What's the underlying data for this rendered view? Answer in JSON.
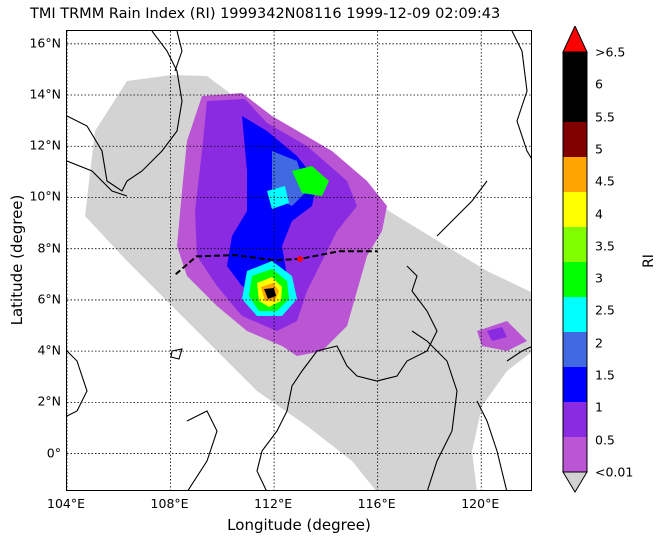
{
  "title": "TMI TRMM Rain Index (RI) 1999342N08116 1999-12-09 02:09:43",
  "x_axis": {
    "label": "Longitude (degree)",
    "ticks": [
      "104°E",
      "108°E",
      "112°E",
      "116°E",
      "120°E"
    ]
  },
  "y_axis": {
    "label": "Latitude (degree)",
    "ticks": [
      "16°N",
      "14°N",
      "12°N",
      "10°N",
      "8°N",
      "6°N",
      "4°N",
      "2°N",
      "0°"
    ]
  },
  "colorbar": {
    "label": "RI",
    "ticks": [
      ">6.5",
      "6",
      "5.5",
      "5",
      "4.5",
      "4",
      "3.5",
      "3",
      "2.5",
      "2",
      "1.5",
      "1",
      "0.5",
      "<0.01"
    ],
    "colors": [
      "#000000",
      "#000000",
      "#800000",
      "#ffa500",
      "#ffff00",
      "#7fff00",
      "#00ff00",
      "#00ffff",
      "#4169e1",
      "#0000ff",
      "#8a2be2",
      "#ba55d3"
    ],
    "over_color": "#ff0000",
    "under_color": "#d3d3d3"
  },
  "chart_data": {
    "type": "heatmap",
    "xlim": [
      104,
      122
    ],
    "ylim": [
      -1.5,
      16.5
    ],
    "x_ticks": [
      104,
      108,
      112,
      116,
      120
    ],
    "y_ticks": [
      16,
      14,
      12,
      10,
      8,
      6,
      4,
      2,
      0
    ],
    "grid": true,
    "swath_color": "#d3d3d3",
    "storm_track": [
      [
        108.2,
        7.0
      ],
      [
        109.0,
        7.7
      ],
      [
        110.5,
        7.75
      ],
      [
        112.0,
        7.55
      ],
      [
        113.0,
        7.6
      ],
      [
        114.5,
        7.9
      ],
      [
        116.0,
        7.9
      ]
    ],
    "storm_center": [
      113.0,
      7.6
    ],
    "storm_center_color": "#ff0000",
    "rain_max_location": [
      112.0,
      6.3
    ]
  }
}
